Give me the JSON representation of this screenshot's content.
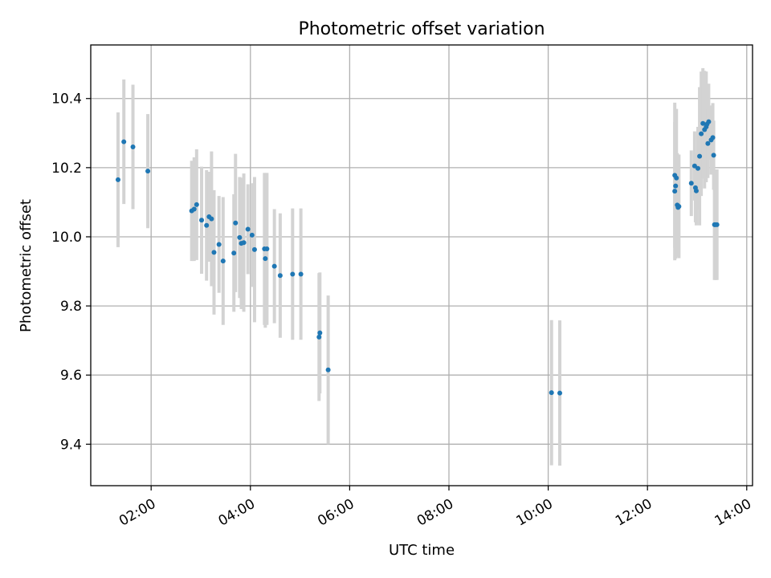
{
  "chart_data": {
    "type": "scatter",
    "title": "Photometric offset variation",
    "xlabel": "UTC time",
    "ylabel": "Photometric offset",
    "x_unit": "hours UTC",
    "xlim": [
      "00:47",
      "14:07"
    ],
    "ylim": [
      9.28,
      10.555
    ],
    "x_ticks": [
      "02:00",
      "04:00",
      "06:00",
      "08:00",
      "10:00",
      "12:00",
      "14:00"
    ],
    "y_ticks": [
      "9.4",
      "9.6",
      "9.8",
      "10.0",
      "10.2",
      "10.4"
    ],
    "grid": true,
    "colors": {
      "points": "#1f77b4",
      "errorbars": "#d3d3d3"
    },
    "series": [
      {
        "x": [
          "01:20",
          "01:27",
          "01:38",
          "01:56",
          "02:49",
          "02:52",
          "02:55",
          "03:01",
          "03:07",
          "03:10",
          "03:13",
          "03:16",
          "03:22",
          "03:27",
          "03:40",
          "03:42",
          "03:47",
          "03:49",
          "03:52",
          "03:57",
          "04:02",
          "04:05",
          "04:17",
          "04:18",
          "04:20",
          "04:29",
          "04:36",
          "04:51",
          "05:01",
          "05:23",
          "05:24",
          "05:34",
          "10:04",
          "10:14",
          "12:33",
          "12:33",
          "12:34",
          "12:35",
          "12:36",
          "12:37",
          "12:38",
          "12:53",
          "12:57",
          "12:58",
          "12:59",
          "13:01",
          "13:03",
          "13:05",
          "13:07",
          "13:09",
          "13:11",
          "13:12",
          "13:13",
          "13:14",
          "13:17",
          "13:19",
          "13:20",
          "13:21",
          "13:22",
          "13:24"
        ],
        "y": [
          10.165,
          10.275,
          10.26,
          10.19,
          10.075,
          10.08,
          10.093,
          10.048,
          10.033,
          10.058,
          10.052,
          9.955,
          9.978,
          9.93,
          9.953,
          10.04,
          9.998,
          9.981,
          9.983,
          10.022,
          10.005,
          9.963,
          9.965,
          9.937,
          9.965,
          9.915,
          9.888,
          9.892,
          9.892,
          9.71,
          9.722,
          9.615,
          9.549,
          9.548,
          10.178,
          10.132,
          10.147,
          10.17,
          10.092,
          10.085,
          10.088,
          10.155,
          10.205,
          10.142,
          10.133,
          10.198,
          10.233,
          10.298,
          10.328,
          10.31,
          10.318,
          10.326,
          10.27,
          10.333,
          10.28,
          10.287,
          10.236,
          10.035,
          10.035,
          10.035
        ],
        "err": [
          0.195,
          0.18,
          0.18,
          0.165,
          0.145,
          0.15,
          0.16,
          0.155,
          0.16,
          0.13,
          0.195,
          0.18,
          0.14,
          0.185,
          0.17,
          0.2,
          0.175,
          0.19,
          0.2,
          0.13,
          0.15,
          0.21,
          0.22,
          0.2,
          0.22,
          0.165,
          0.18,
          0.19,
          0.19,
          0.185,
          0.175,
          0.215,
          0.21,
          0.21,
          0.21,
          0.2,
          0.21,
          0.2,
          0.15,
          0.13,
          0.15,
          0.095,
          0.1,
          0.1,
          0.1,
          0.12,
          0.2,
          0.18,
          0.16,
          0.17,
          0.16,
          0.1,
          0.1,
          0.11,
          0.1,
          0.1,
          0.1,
          0.16,
          0.16,
          0.16
        ]
      }
    ]
  }
}
